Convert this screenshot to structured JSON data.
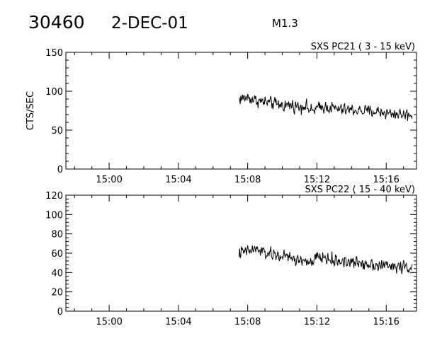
{
  "header": {
    "event_number": "30460",
    "date": "2-DEC-01",
    "flare_class": "M1.3"
  },
  "chart_data": [
    {
      "type": "line",
      "title": "SXS PC21  (  3 - 15 keV)",
      "ylabel": "CTS/SEC",
      "xlabel": "",
      "ylim": [
        0,
        150
      ],
      "y_ticks": [
        0,
        50,
        100,
        150
      ],
      "x_tick_labels": [
        "15:00",
        "15:04",
        "15:08",
        "15:12",
        "15:16"
      ],
      "x_range": [
        "14:57:30",
        "15:17:45"
      ],
      "grid": false,
      "series": [
        {
          "points": [
            [
              "15:07:30",
              90
            ],
            [
              "15:08:00",
              92
            ],
            [
              "15:08:30",
              88
            ],
            [
              "15:09:00",
              86
            ],
            [
              "15:09:30",
              84
            ],
            [
              "15:10:00",
              82
            ],
            [
              "15:10:30",
              82
            ],
            [
              "15:11:00",
              80
            ],
            [
              "15:11:20",
              82
            ],
            [
              "15:11:40",
              74
            ],
            [
              "15:12:00",
              78
            ],
            [
              "15:12:30",
              80
            ],
            [
              "15:13:00",
              78
            ],
            [
              "15:13:30",
              76
            ],
            [
              "15:14:00",
              76
            ],
            [
              "15:14:30",
              75
            ],
            [
              "15:15:00",
              74
            ],
            [
              "15:15:30",
              74
            ],
            [
              "15:16:00",
              72
            ],
            [
              "15:16:30",
              71
            ],
            [
              "15:17:00",
              70
            ],
            [
              "15:17:30",
              70
            ]
          ]
        }
      ]
    },
    {
      "type": "line",
      "title": "SXS PC22  ( 15 - 40 keV)",
      "ylabel": "",
      "xlabel": "",
      "ylim": [
        0,
        120
      ],
      "y_ticks": [
        0,
        20,
        40,
        60,
        80,
        100,
        120
      ],
      "x_tick_labels": [
        "15:00",
        "15:04",
        "15:08",
        "15:12",
        "15:16"
      ],
      "x_range": [
        "14:57:30",
        "15:17:45"
      ],
      "grid": false,
      "series": [
        {
          "points": [
            [
              "15:07:30",
              60
            ],
            [
              "15:08:00",
              62
            ],
            [
              "15:08:30",
              64
            ],
            [
              "15:09:00",
              60
            ],
            [
              "15:09:30",
              58
            ],
            [
              "15:10:00",
              57
            ],
            [
              "15:10:30",
              55
            ],
            [
              "15:11:00",
              52
            ],
            [
              "15:11:20",
              53
            ],
            [
              "15:11:40",
              48
            ],
            [
              "15:12:00",
              56
            ],
            [
              "15:12:30",
              55
            ],
            [
              "15:13:00",
              52
            ],
            [
              "15:13:30",
              52
            ],
            [
              "15:14:00",
              50
            ],
            [
              "15:14:30",
              50
            ],
            [
              "15:15:00",
              49
            ],
            [
              "15:15:30",
              48
            ],
            [
              "15:16:00",
              47
            ],
            [
              "15:16:30",
              46
            ],
            [
              "15:17:00",
              46
            ],
            [
              "15:17:30",
              45
            ]
          ]
        }
      ]
    }
  ]
}
